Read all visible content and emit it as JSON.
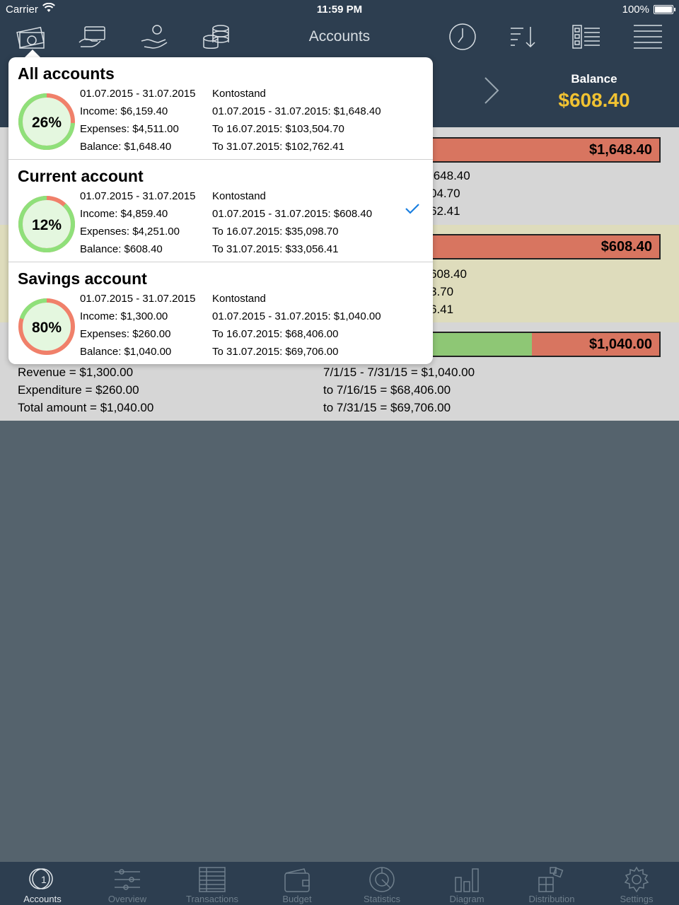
{
  "status_bar": {
    "carrier": "Carrier",
    "time": "11:59 PM",
    "battery": "100%"
  },
  "nav": {
    "title": "Accounts",
    "icons": [
      "accounts-money-icon",
      "card-icon",
      "hand-coin-icon",
      "coins-stack-icon",
      "clock-icon",
      "sort-icon",
      "list-report-icon",
      "menu-icon"
    ]
  },
  "header": {
    "balance_label": "Balance",
    "balance_value": "$608.40"
  },
  "background_rows": [
    {
      "bar_value": "$1,648.40",
      "lines": [
        ",648.40",
        "04.70",
        "62.41"
      ]
    },
    {
      "bar_value": "$608.40",
      "lines": [
        "608.40",
        "3.70",
        "6.41"
      ]
    },
    {
      "bar_value": "$1,040.00",
      "green_fraction": 0.62,
      "left_lines": [
        "Revenue = $1,300.00",
        "Expenditure = $260.00",
        "Total amount = $1,040.00"
      ],
      "right_lines": [
        "7/1/15 - 7/31/15 = $1,040.00",
        "to 7/16/15 = $68,406.00",
        "to 7/31/15 = $69,706.00"
      ]
    }
  ],
  "popover": {
    "accounts": [
      {
        "name": "All accounts",
        "percent": "26%",
        "fraction": 0.26,
        "period": "01.07.2015 - 31.07.2015",
        "income": "Income: $6,159.40",
        "expenses": "Expenses: $4,511.00",
        "balance": "Balance: $1,648.40",
        "kontostand": "Kontostand",
        "period_balance": "01.07.2015 - 31.07.2015: $1,648.40",
        "to_mid": "To 16.07.2015: $103,504.70",
        "to_end": "To 31.07.2015: $102,762.41",
        "selected": false
      },
      {
        "name": "Current account",
        "percent": "12%",
        "fraction": 0.12,
        "period": "01.07.2015 - 31.07.2015",
        "income": "Income: $4,859.40",
        "expenses": "Expenses: $4,251.00",
        "balance": "Balance: $608.40",
        "kontostand": "Kontostand",
        "period_balance": "01.07.2015 - 31.07.2015: $608.40",
        "to_mid": "To 16.07.2015: $35,098.70",
        "to_end": "To 31.07.2015: $33,056.41",
        "selected": true
      },
      {
        "name": "Savings account",
        "percent": "80%",
        "fraction": 0.8,
        "period": "01.07.2015 - 31.07.2015",
        "income": "Income: $1,300.00",
        "expenses": "Expenses: $260.00",
        "balance": "Balance: $1,040.00",
        "kontostand": "Kontostand",
        "period_balance": "01.07.2015 - 31.07.2015: $1,040.00",
        "to_mid": "To 16.07.2015: $68,406.00",
        "to_end": "To 31.07.2015: $69,706.00",
        "selected": false
      }
    ]
  },
  "tabs": [
    {
      "label": "Accounts",
      "icon": "accounts-coin-icon",
      "active": true
    },
    {
      "label": "Overview",
      "icon": "sliders-icon",
      "active": false
    },
    {
      "label": "Transactions",
      "icon": "table-icon",
      "active": false
    },
    {
      "label": "Budget",
      "icon": "wallet-icon",
      "active": false
    },
    {
      "label": "Statistics",
      "icon": "pie-icon",
      "active": false
    },
    {
      "label": "Diagram",
      "icon": "bar-chart-icon",
      "active": false
    },
    {
      "label": "Distribution",
      "icon": "distribution-icon",
      "active": false
    },
    {
      "label": "Settings",
      "icon": "gear-icon",
      "active": false
    }
  ],
  "colors": {
    "navbar": "#2d3e50",
    "balance_accent": "#f1c232",
    "bar_red": "#d87560",
    "bar_green": "#8ec775",
    "donut_green": "#8fe07a",
    "donut_red": "#f0806a",
    "donut_fill": "#e4f7df",
    "check_blue": "#1a7fe0"
  }
}
